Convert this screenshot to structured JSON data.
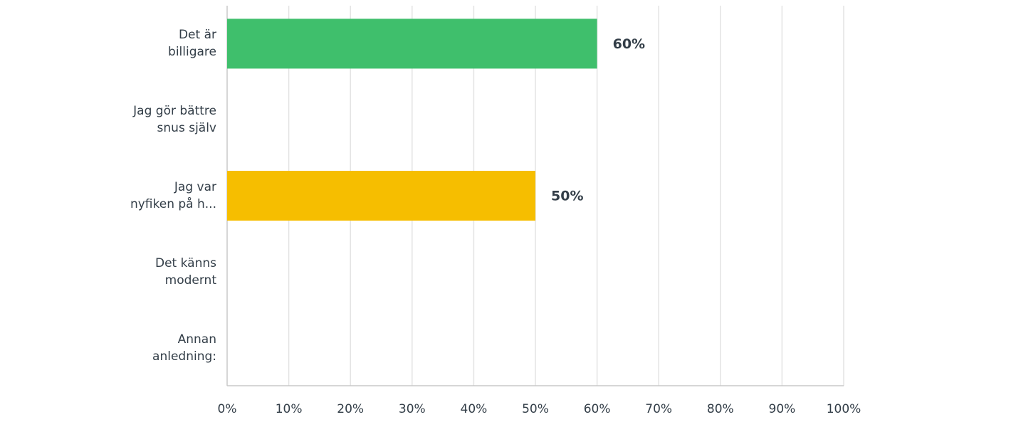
{
  "chart_data": {
    "type": "bar",
    "orientation": "horizontal",
    "categories": [
      "Det är\nbilligare",
      "Jag gör bättre\nsnus själv",
      "Jag var\nnyfiken på h...",
      "Det känns\nmodernt",
      "Annan\nanledning:"
    ],
    "values": [
      60,
      0,
      50,
      0,
      0
    ],
    "value_labels": [
      "60%",
      null,
      "50%",
      null,
      null
    ],
    "colors": [
      "#3fbf6c",
      null,
      "#f6be00",
      null,
      null
    ],
    "xlim": [
      0,
      100
    ],
    "xticks": [
      {
        "value": 0,
        "label": "0%"
      },
      {
        "value": 10,
        "label": "10%"
      },
      {
        "value": 20,
        "label": "20%"
      },
      {
        "value": 30,
        "label": "30%"
      },
      {
        "value": 40,
        "label": "40%"
      },
      {
        "value": 50,
        "label": "50%"
      },
      {
        "value": 60,
        "label": "60%"
      },
      {
        "value": 70,
        "label": "70%"
      },
      {
        "value": 80,
        "label": "80%"
      },
      {
        "value": 90,
        "label": "90%"
      },
      {
        "value": 100,
        "label": "100%"
      }
    ],
    "grid": true
  }
}
